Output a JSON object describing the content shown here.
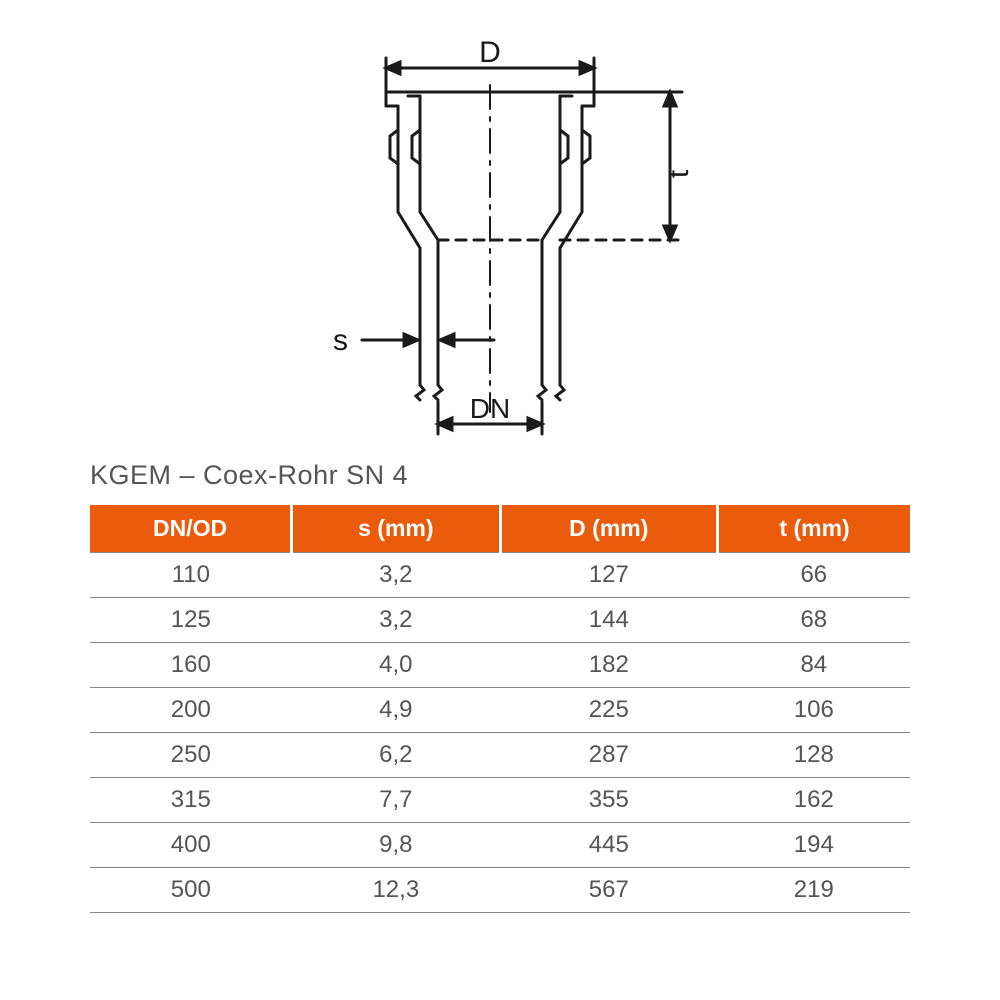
{
  "diagram": {
    "labels": {
      "D": "D",
      "t": "t",
      "s": "s",
      "DN": "DN"
    },
    "stroke": "#1a1a1a",
    "stroke_width": 3,
    "font_size": 28,
    "font_family": "Arial, sans-serif"
  },
  "title": "KGEM – Coex-Rohr SN 4",
  "table": {
    "header_bg": "#ea5b0c",
    "header_color": "#ffffff",
    "row_border": "#888888",
    "text_color": "#555555",
    "columns": [
      "DN/OD",
      "s (mm)",
      "D (mm)",
      "t (mm)"
    ],
    "rows": [
      [
        "110",
        "3,2",
        "127",
        "66"
      ],
      [
        "125",
        "3,2",
        "144",
        "68"
      ],
      [
        "160",
        "4,0",
        "182",
        "84"
      ],
      [
        "200",
        "4,9",
        "225",
        "106"
      ],
      [
        "250",
        "6,2",
        "287",
        "128"
      ],
      [
        "315",
        "7,7",
        "355",
        "162"
      ],
      [
        "400",
        "9,8",
        "445",
        "194"
      ],
      [
        "500",
        "12,3",
        "567",
        "219"
      ]
    ]
  }
}
